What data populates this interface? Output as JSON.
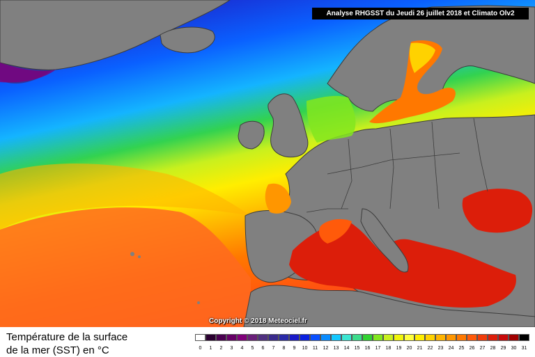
{
  "header": {
    "title": "Analyse RHGSST  du Jeudi 26 juillet 2018 et Climato Olv2"
  },
  "map": {
    "copyright": "Copyright © 2018 Meteociel.fr"
  },
  "legend": {
    "title_line1": "Température de la surface",
    "title_line2": "de la mer (SST) en °C",
    "scale": [
      {
        "label": "0",
        "color": "#ffffff"
      },
      {
        "label": "1",
        "color": "#2a0030"
      },
      {
        "label": "2",
        "color": "#4a0050"
      },
      {
        "label": "3",
        "color": "#660066"
      },
      {
        "label": "4",
        "color": "#80007a"
      },
      {
        "label": "5",
        "color": "#6a207a"
      },
      {
        "label": "6",
        "color": "#503080"
      },
      {
        "label": "7",
        "color": "#3a2a8c"
      },
      {
        "label": "8",
        "color": "#2a2aa8"
      },
      {
        "label": "9",
        "color": "#1a1ac8"
      },
      {
        "label": "10",
        "color": "#0a20e0"
      },
      {
        "label": "11",
        "color": "#0a50ff"
      },
      {
        "label": "12",
        "color": "#0a8cff"
      },
      {
        "label": "13",
        "color": "#14c8ff"
      },
      {
        "label": "14",
        "color": "#3ce6d2"
      },
      {
        "label": "15",
        "color": "#3cdc8c"
      },
      {
        "label": "16",
        "color": "#32d232"
      },
      {
        "label": "17",
        "color": "#82e61e"
      },
      {
        "label": "18",
        "color": "#c8f01e"
      },
      {
        "label": "19",
        "color": "#f0f50a"
      },
      {
        "label": "20",
        "color": "#ffff3c"
      },
      {
        "label": "21",
        "color": "#ffee00"
      },
      {
        "label": "22",
        "color": "#ffd200"
      },
      {
        "label": "23",
        "color": "#ffb400"
      },
      {
        "label": "24",
        "color": "#ff9600"
      },
      {
        "label": "25",
        "color": "#ff7800"
      },
      {
        "label": "26",
        "color": "#ff5a0a"
      },
      {
        "label": "27",
        "color": "#f03c0a"
      },
      {
        "label": "28",
        "color": "#dc1e0a"
      },
      {
        "label": "29",
        "color": "#c80a0a"
      },
      {
        "label": "30",
        "color": "#a00000"
      },
      {
        "label": "31",
        "color": "#000000"
      }
    ]
  },
  "colors": {
    "land": "#808080",
    "land_border": "#3c3c3c"
  }
}
